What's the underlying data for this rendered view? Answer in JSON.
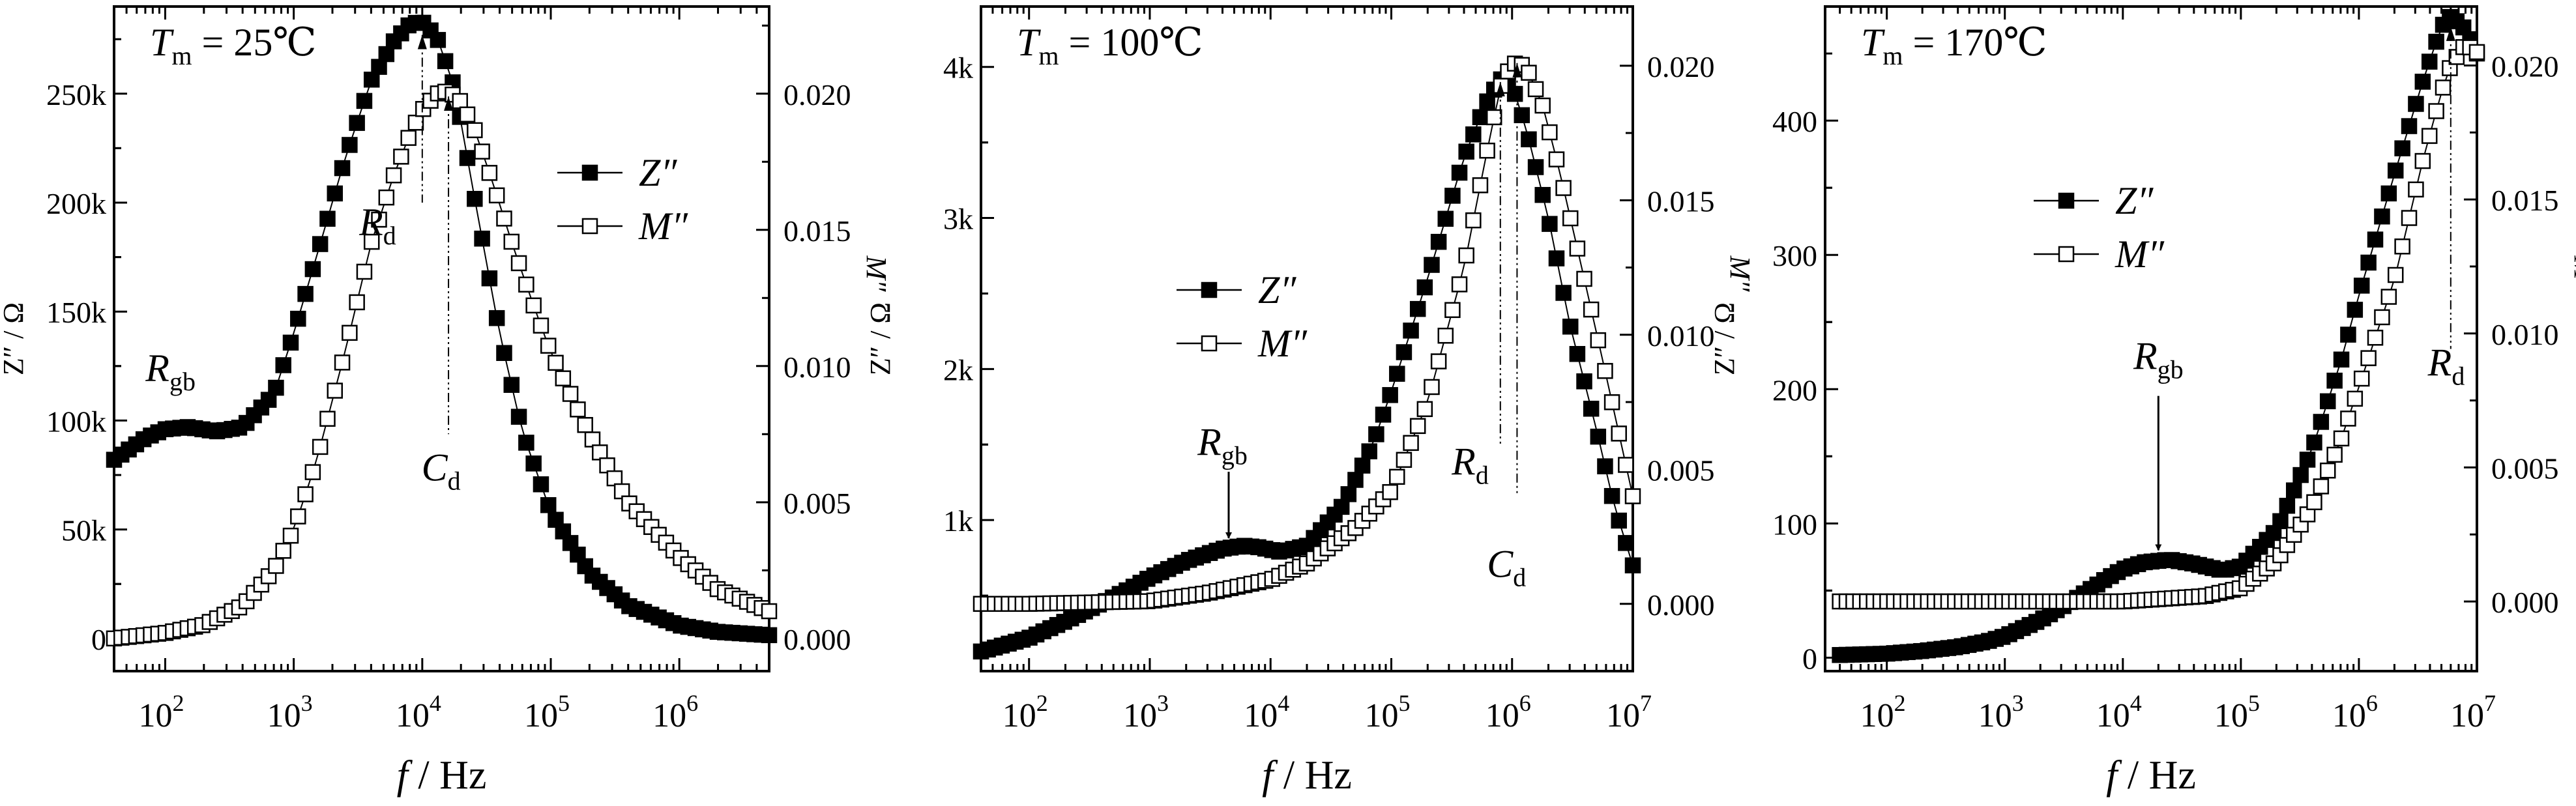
{
  "chart_data": [
    {
      "type": "line",
      "panel_label": "T_m = 25℃",
      "title_parts": {
        "symbol": "T",
        "sub": "m",
        "rest": "= 25℃"
      },
      "xlabel": {
        "symbol": "f",
        "rest": "/ Hz"
      },
      "ylabel_left": "Z″ / Ω",
      "ylabel_right": "M″",
      "x_scale": "log",
      "xlim": [
        40,
        5000000
      ],
      "ylim_left": [
        -15000,
        290000
      ],
      "ylim_right": [
        -0.0012,
        0.0232
      ],
      "x_ticks": [
        {
          "value": 100,
          "base": "10",
          "exp": "2"
        },
        {
          "value": 1000,
          "base": "10",
          "exp": "3"
        },
        {
          "value": 10000,
          "base": "10",
          "exp": "4"
        },
        {
          "value": 100000,
          "base": "10",
          "exp": "5"
        },
        {
          "value": 1000000,
          "base": "10",
          "exp": "6"
        }
      ],
      "y_ticks_left": [
        {
          "value": 0,
          "label": "0"
        },
        {
          "value": 50000,
          "label": "50k"
        },
        {
          "value": 100000,
          "label": "100k"
        },
        {
          "value": 150000,
          "label": "150k"
        },
        {
          "value": 200000,
          "label": "200k"
        },
        {
          "value": 250000,
          "label": "250k"
        }
      ],
      "y_ticks_right": [
        {
          "value": 0.0,
          "label": "0.000"
        },
        {
          "value": 0.005,
          "label": "0.005"
        },
        {
          "value": 0.01,
          "label": "0.010"
        },
        {
          "value": 0.015,
          "label": "0.015"
        },
        {
          "value": 0.02,
          "label": "0.020"
        }
      ],
      "legend": {
        "position": "right",
        "entries": [
          {
            "name": "Z″",
            "marker": "filled-square"
          },
          {
            "name": "M″",
            "marker": "open-square"
          }
        ]
      },
      "series": [
        {
          "name": "Z″",
          "axis": "left",
          "marker": "filled-square",
          "x": [
            40,
            70,
            100,
            150,
            250,
            400,
            700,
            1000,
            1500,
            2500,
            4000,
            6000,
            8000,
            10000,
            13000,
            18000,
            25000,
            40000,
            60000,
            100000,
            200000,
            400000,
            1000000,
            2000000,
            5000000
          ],
          "y": [
            82000,
            92000,
            96000,
            97000,
            95000,
            97000,
            112000,
            140000,
            175000,
            220000,
            256000,
            274000,
            282000,
            283000,
            276000,
            252000,
            205000,
            140000,
            95000,
            58000,
            30000,
            15000,
            6000,
            3000,
            1500
          ]
        },
        {
          "name": "M″",
          "axis": "right",
          "marker": "open-square",
          "x": [
            40,
            100,
            200,
            400,
            700,
            1000,
            1500,
            2500,
            4000,
            6000,
            8000,
            10000,
            13000,
            16000,
            20000,
            25000,
            35000,
            50000,
            70000,
            100000,
            200000,
            400000,
            1000000,
            2000000,
            5000000
          ],
          "y": [
            0.0,
            0.0002,
            0.0005,
            0.0012,
            0.0025,
            0.004,
            0.0065,
            0.0105,
            0.0145,
            0.017,
            0.0185,
            0.0194,
            0.02,
            0.0201,
            0.0197,
            0.0188,
            0.0168,
            0.0145,
            0.0125,
            0.0105,
            0.0075,
            0.005,
            0.003,
            0.0018,
            0.001
          ]
        }
      ],
      "annotations": [
        {
          "kind": "label",
          "symbol": "R",
          "sub": "gb",
          "x": 110,
          "y": 118000,
          "axis": "left"
        },
        {
          "kind": "guide",
          "symbol": "R",
          "sub": "d",
          "x": 10000,
          "y_top": 277000,
          "y_bottom": 200000,
          "axis": "left",
          "label_x": 4500,
          "label_y": 185000
        },
        {
          "kind": "guide",
          "symbol": "C",
          "sub": "d",
          "x": 16000,
          "y_top": 0.0199,
          "y_bottom": 0.0075,
          "axis": "right",
          "label_x": 14000,
          "label_y": 0.0058
        }
      ]
    },
    {
      "type": "line",
      "panel_label": "T_m = 100℃",
      "title_parts": {
        "symbol": "T",
        "sub": "m",
        "rest": "= 100℃"
      },
      "xlabel": {
        "symbol": "f",
        "rest": "/ Hz"
      },
      "ylabel_left": "Z″ / Ω",
      "ylabel_right": "M″",
      "x_scale": "log",
      "xlim": [
        40,
        10000000
      ],
      "ylim_left": [
        0,
        4400
      ],
      "ylim_right": [
        -0.0025,
        0.0222
      ],
      "x_ticks": [
        {
          "value": 100,
          "base": "10",
          "exp": "2"
        },
        {
          "value": 1000,
          "base": "10",
          "exp": "3"
        },
        {
          "value": 10000,
          "base": "10",
          "exp": "4"
        },
        {
          "value": 100000,
          "base": "10",
          "exp": "5"
        },
        {
          "value": 1000000,
          "base": "10",
          "exp": "6"
        },
        {
          "value": 10000000,
          "base": "10",
          "exp": "7"
        }
      ],
      "y_ticks_left": [
        {
          "value": 1000,
          "label": "1k"
        },
        {
          "value": 2000,
          "label": "2k"
        },
        {
          "value": 3000,
          "label": "3k"
        },
        {
          "value": 4000,
          "label": "4k"
        }
      ],
      "y_ticks_right": [
        {
          "value": 0.0,
          "label": "0.000"
        },
        {
          "value": 0.005,
          "label": "0.005"
        },
        {
          "value": 0.01,
          "label": "0.010"
        },
        {
          "value": 0.015,
          "label": "0.015"
        },
        {
          "value": 0.02,
          "label": "0.020"
        }
      ],
      "legend": {
        "position": "center-left",
        "entries": [
          {
            "name": "Z″",
            "marker": "filled-square"
          },
          {
            "name": "M″",
            "marker": "open-square"
          }
        ]
      },
      "series": [
        {
          "name": "Z″",
          "axis": "left",
          "marker": "filled-square",
          "x": [
            40,
            100,
            200,
            400,
            700,
            1000,
            2000,
            4000,
            6000,
            8000,
            12000,
            20000,
            40000,
            70000,
            100000,
            200000,
            400000,
            600000,
            800000,
            1000000,
            1300000,
            2000000,
            3000000,
            5000000,
            7000000,
            10000000
          ],
          "y": [
            130,
            220,
            330,
            450,
            550,
            620,
            730,
            810,
            830,
            820,
            790,
            830,
            1100,
            1500,
            1850,
            2600,
            3400,
            3750,
            3920,
            3880,
            3600,
            3000,
            2300,
            1600,
            1100,
            700
          ]
        },
        {
          "name": "M″",
          "axis": "right",
          "marker": "open-square",
          "x": [
            40,
            100,
            1000,
            3000,
            10000,
            20000,
            50000,
            100000,
            200000,
            400000,
            600000,
            800000,
            1000000,
            1300000,
            1800000,
            2500000,
            4000000,
            6000000,
            10000000
          ],
          "y": [
            0.0,
            0.0,
            0.0001,
            0.0004,
            0.0009,
            0.0015,
            0.0028,
            0.0042,
            0.0075,
            0.0125,
            0.0165,
            0.0192,
            0.0201,
            0.02,
            0.0185,
            0.016,
            0.012,
            0.0085,
            0.004
          ]
        }
      ],
      "annotations": [
        {
          "kind": "arrow",
          "symbol": "R",
          "sub": "gb",
          "x": 4500,
          "y_from": 1320,
          "y_to": 880,
          "axis": "left",
          "label_x": 4000,
          "label_y": 1430
        },
        {
          "kind": "guide",
          "symbol": "R",
          "sub": "d",
          "x": 800000,
          "y_top": 3900,
          "y_bottom": 1500,
          "axis": "left",
          "label_x": 450000,
          "label_y": 1300
        },
        {
          "kind": "guide",
          "symbol": "C",
          "sub": "d",
          "x": 1100000,
          "y_top": 0.0201,
          "y_bottom": 0.004,
          "axis": "right",
          "label_x": 900000,
          "label_y": 0.001
        }
      ]
    },
    {
      "type": "line",
      "panel_label": "T_m = 170℃",
      "title_parts": {
        "symbol": "T",
        "sub": "m",
        "rest": "= 170℃"
      },
      "xlabel": {
        "symbol": "f",
        "rest": "/ Hz"
      },
      "ylabel_left": "Z″ / Ω",
      "ylabel_right": "M″",
      "x_scale": "log",
      "xlim": [
        30,
        10000000
      ],
      "ylim_left": [
        -10,
        485
      ],
      "ylim_right": [
        -0.0026,
        0.0222
      ],
      "x_ticks": [
        {
          "value": 100,
          "base": "10",
          "exp": "2"
        },
        {
          "value": 1000,
          "base": "10",
          "exp": "3"
        },
        {
          "value": 10000,
          "base": "10",
          "exp": "4"
        },
        {
          "value": 100000,
          "base": "10",
          "exp": "5"
        },
        {
          "value": 1000000,
          "base": "10",
          "exp": "6"
        },
        {
          "value": 10000000,
          "base": "10",
          "exp": "7"
        }
      ],
      "y_ticks_left": [
        {
          "value": 0,
          "label": "0"
        },
        {
          "value": 100,
          "label": "100"
        },
        {
          "value": 200,
          "label": "200"
        },
        {
          "value": 300,
          "label": "300"
        },
        {
          "value": 400,
          "label": "400"
        }
      ],
      "y_ticks_right": [
        {
          "value": 0.0,
          "label": "0.000"
        },
        {
          "value": 0.005,
          "label": "0.005"
        },
        {
          "value": 0.01,
          "label": "0.010"
        },
        {
          "value": 0.015,
          "label": "0.015"
        },
        {
          "value": 0.02,
          "label": "0.020"
        }
      ],
      "legend": {
        "position": "center",
        "entries": [
          {
            "name": "Z″",
            "marker": "filled-square"
          },
          {
            "name": "M″",
            "marker": "open-square"
          }
        ]
      },
      "series": [
        {
          "name": "Z″",
          "axis": "left",
          "marker": "filled-square",
          "x": [
            40,
            100,
            200,
            400,
            700,
            1000,
            2000,
            4000,
            7000,
            10000,
            15000,
            25000,
            40000,
            70000,
            100000,
            200000,
            400000,
            700000,
            1000000,
            2000000,
            3500000,
            5000000,
            6000000,
            8000000,
            10000000
          ],
          "y": [
            2,
            3,
            5,
            8,
            12,
            16,
            28,
            44,
            58,
            66,
            71,
            73,
            70,
            65,
            68,
            95,
            155,
            220,
            270,
            360,
            430,
            470,
            478,
            468,
            450
          ]
        },
        {
          "name": "M″",
          "axis": "right",
          "marker": "open-square",
          "x": [
            40,
            100,
            1000,
            10000,
            50000,
            100000,
            200000,
            400000,
            700000,
            1000000,
            2000000,
            3500000,
            5000000,
            6000000,
            8000000,
            10000000
          ],
          "y": [
            0.0,
            0.0,
            0.0,
            0.0,
            0.0002,
            0.0005,
            0.0015,
            0.0035,
            0.006,
            0.008,
            0.012,
            0.0165,
            0.019,
            0.02,
            0.0208,
            0.0205
          ]
        }
      ],
      "annotations": [
        {
          "kind": "label",
          "symbol": "R",
          "sub": "gb",
          "x": 20000,
          "y": 215,
          "axis": "left"
        },
        {
          "kind": "arrow",
          "x": 20000,
          "y_from": 195,
          "y_to": 80,
          "axis": "left"
        },
        {
          "kind": "guide",
          "symbol": "R",
          "sub": "d",
          "x": 6000000,
          "y_top": 470,
          "y_bottom": 230,
          "axis": "left",
          "label_x": 5500000,
          "label_y": 210
        }
      ]
    }
  ]
}
